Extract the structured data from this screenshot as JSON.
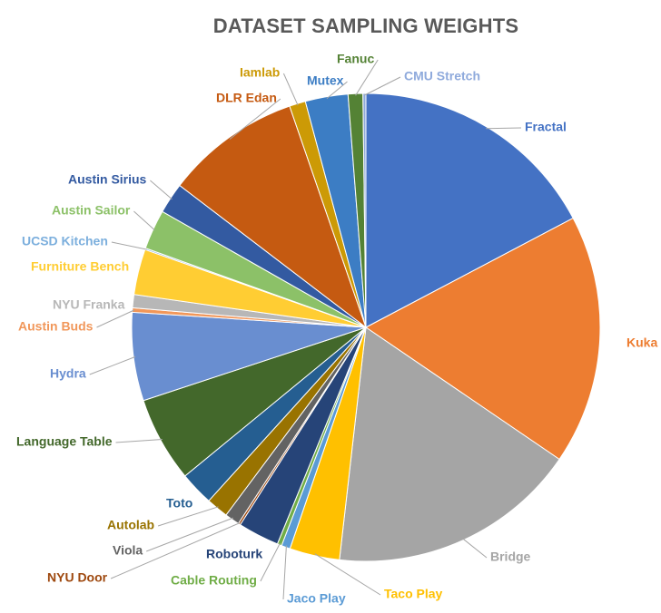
{
  "chart_data": {
    "type": "pie",
    "title": "DATASET SAMPLING WEIGHTS",
    "legend": "none",
    "slices": [
      {
        "label": "Fractal",
        "value": 17.0,
        "color": "#4472C4"
      },
      {
        "label": "Kuka",
        "value": 17.0,
        "color": "#ED7D31"
      },
      {
        "label": "Bridge",
        "value": 17.0,
        "color": "#A5A5A5"
      },
      {
        "label": "Taco Play",
        "value": 3.4,
        "color": "#FFC000"
      },
      {
        "label": "Jaco Play",
        "value": 0.6,
        "color": "#5B9BD5"
      },
      {
        "label": "Cable Routing",
        "value": 0.3,
        "color": "#70AD47"
      },
      {
        "label": "Roboturk",
        "value": 2.8,
        "color": "#264478"
      },
      {
        "label": "NYU Door",
        "value": 0.15,
        "color": "#9E480E"
      },
      {
        "label": "Viola",
        "value": 1.0,
        "color": "#636363"
      },
      {
        "label": "Autolab",
        "value": 1.5,
        "color": "#997300"
      },
      {
        "label": "Toto",
        "value": 2.3,
        "color": "#255E91"
      },
      {
        "label": "Language Table",
        "value": 5.8,
        "color": "#43682B"
      },
      {
        "label": "Hydra",
        "value": 6.0,
        "color": "#698ED0"
      },
      {
        "label": "Austin Buds",
        "value": 0.3,
        "color": "#F1975A"
      },
      {
        "label": "NYU Franka",
        "value": 0.9,
        "color": "#B7B7B7"
      },
      {
        "label": "Furniture Bench",
        "value": 3.1,
        "color": "#FFCD33"
      },
      {
        "label": "UCSD Kitchen",
        "value": 0.1,
        "color": "#7CAFDD"
      },
      {
        "label": "Austin Sailor",
        "value": 2.7,
        "color": "#8CC168"
      },
      {
        "label": "Austin Sirius",
        "value": 2.1,
        "color": "#335AA1"
      },
      {
        "label": "DLR Edan",
        "value": 9.2,
        "color": "#C55A11"
      },
      {
        "label": "Iamlab",
        "value": 1.1,
        "color": "#CC9A06"
      },
      {
        "label": "Mutex",
        "value": 2.9,
        "color": "#3C7DC4"
      },
      {
        "label": "Fanuc",
        "value": 1.0,
        "color": "#548235"
      },
      {
        "label": "CMU Stretch",
        "value": 0.2,
        "color": "#8FAADC"
      }
    ]
  }
}
